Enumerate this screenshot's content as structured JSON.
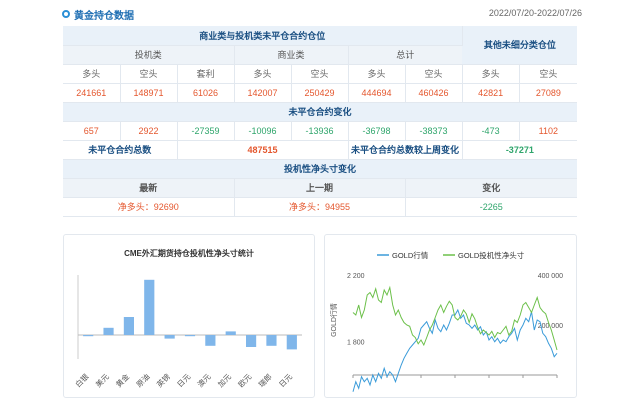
{
  "header": {
    "title": "黄金持仓数据",
    "date_range": "2022/07/20-2022/07/26"
  },
  "table": {
    "row1": {
      "commercial_title": "商业类与投机类未平仓合约仓位",
      "other_title": "其他未细分类仓位"
    },
    "row2": {
      "spec": "投机类",
      "comm": "商业类",
      "total": "总计"
    },
    "row3": [
      "多头",
      "空头",
      "套利",
      "多头",
      "空头",
      "多头",
      "空头",
      "多头",
      "空头"
    ],
    "row4": [
      "241661",
      "148971",
      "61026",
      "142007",
      "250429",
      "444694",
      "460426",
      "42821",
      "27089"
    ],
    "change_title": "未平仓合约变化",
    "row5": [
      "657",
      "2922",
      "-27359",
      "-10096",
      "-13936",
      "-36798",
      "-38373",
      "-473",
      "1102"
    ],
    "oi_total_label": "未平仓合约总数",
    "oi_total_value": "487515",
    "oi_change_label": "未平仓合约总数较上周变化",
    "oi_change_value": "-37271",
    "net_title": "投机性净头寸变化",
    "net_headers": [
      "最新",
      "上一期",
      "变化"
    ],
    "net_latest": "净多头：92690",
    "net_prev": "净多头：94955",
    "net_change": "-2265"
  },
  "left_chart": {
    "chart_data": {
      "type": "bar",
      "title": "CME外汇期货持仓投机性净头寸统计",
      "categories": [
        "白银",
        "美元",
        "黄金",
        "原油",
        "英镑",
        "日元",
        "澳元",
        "加元",
        "欧元",
        "瑞郎",
        "日元"
      ],
      "values": [
        -1,
        6,
        15,
        46,
        -3,
        -1,
        -9,
        3,
        -10,
        -9,
        -12
      ],
      "ylim": [
        -20,
        50
      ]
    }
  },
  "right_chart": {
    "chart_data": {
      "type": "line",
      "legend": [
        "GOLD行情",
        "GOLD投机性净头寸"
      ],
      "ylabel_left": "GOLD行情",
      "left_ticks": [
        "2 200",
        "1 800"
      ],
      "right_ticks": [
        "400 000",
        "200 000"
      ],
      "y_left_lim": [
        1600,
        2200
      ],
      "y_right_lim": [
        0,
        400000
      ],
      "series": [
        {
          "name": "GOLD行情",
          "values": [
            1500,
            1560,
            1520,
            1590,
            1560,
            1580,
            1540,
            1600,
            1560,
            1610,
            1580,
            1640,
            1590,
            1620,
            1600,
            1560,
            1610,
            1660,
            1700,
            1730,
            1760,
            1780,
            1800,
            1820,
            1880,
            1900,
            1920,
            1880,
            1850,
            1930,
            1880,
            1860,
            1900,
            1870,
            1910,
            1960,
            1960,
            1990,
            1940,
            1960,
            1910,
            1900,
            1880,
            1900,
            1870,
            1890,
            1840,
            1860,
            1810,
            1830,
            1800,
            1820,
            1790,
            1810,
            1800,
            1830,
            1850,
            1880,
            1810,
            1870,
            1900,
            1940,
            1920,
            1980,
            1870,
            1930,
            1920,
            1850,
            1830,
            1790,
            1760,
            1710,
            1730
          ]
        },
        {
          "name": "GOLD投机性净头寸",
          "values": [
            250000,
            240000,
            280000,
            230000,
            260000,
            320000,
            330000,
            310000,
            345000,
            300000,
            290000,
            340000,
            320000,
            350000,
            280000,
            240000,
            260000,
            230000,
            210000,
            200000,
            195000,
            160000,
            150000,
            125000,
            140000,
            120000,
            150000,
            180000,
            200000,
            230000,
            260000,
            280000,
            250000,
            275000,
            295000,
            280000,
            230000,
            220000,
            235000,
            260000,
            245000,
            210000,
            245000,
            225000,
            190000,
            165000,
            180000,
            170000,
            160000,
            175000,
            150000,
            170000,
            165000,
            180000,
            195000,
            160000,
            175000,
            220000,
            210000,
            240000,
            280000,
            290000,
            270000,
            250000,
            280000,
            310000,
            270000,
            255000,
            245000,
            210000,
            180000,
            140000,
            100000
          ]
        }
      ]
    }
  }
}
